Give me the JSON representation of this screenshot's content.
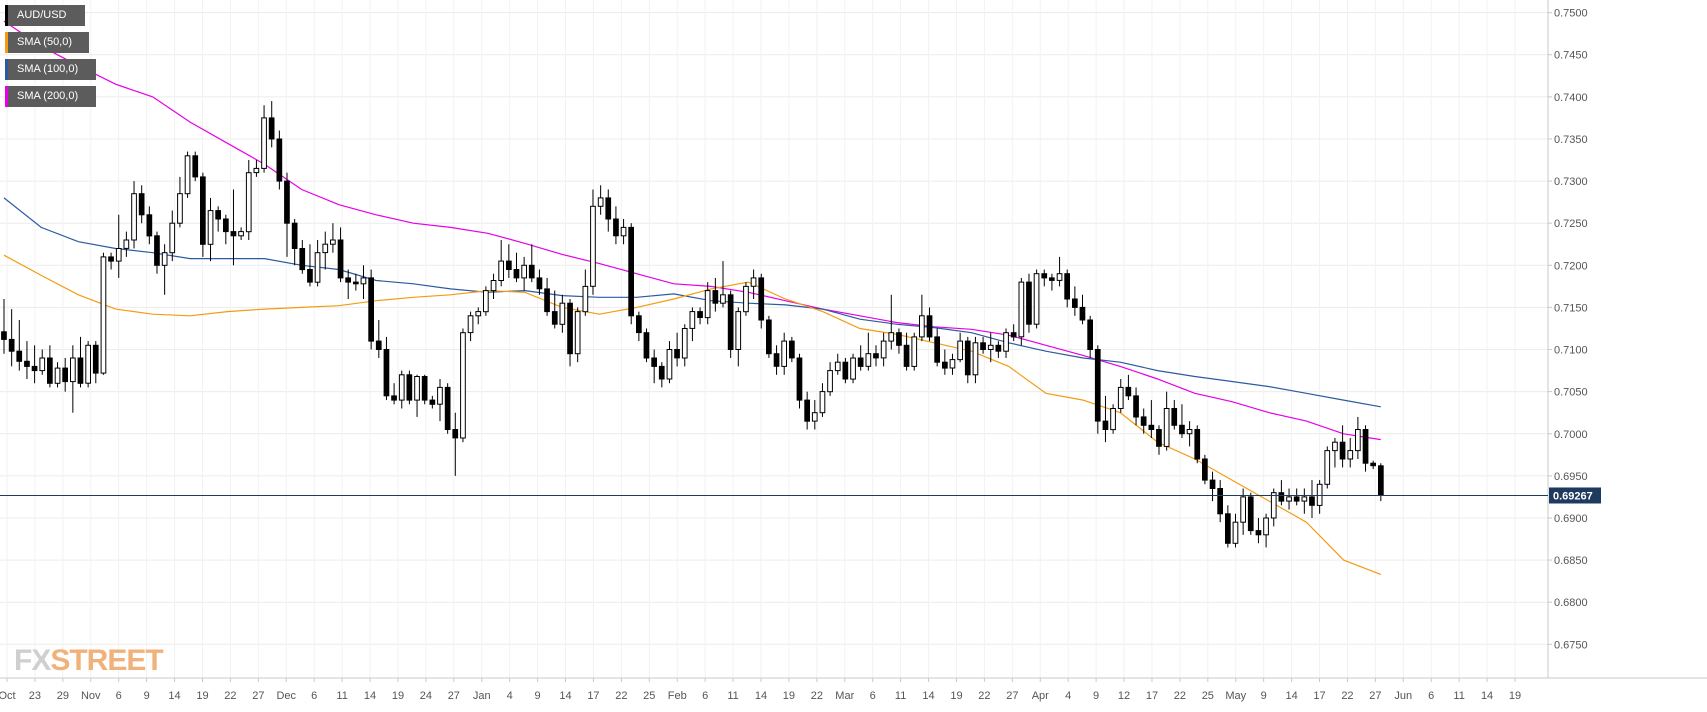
{
  "legend": [
    {
      "label": "AUD/USD",
      "color": "#000000"
    },
    {
      "label": "SMA (50,0)",
      "color": "#f39c12"
    },
    {
      "label": "SMA (100,0)",
      "color": "#2c5aa0"
    },
    {
      "label": "SMA (200,0)",
      "color": "#e600e6"
    }
  ],
  "logo": {
    "fx": "FX",
    "street": "STREET"
  },
  "chart_data": {
    "type": "candlestick",
    "symbol": "AUD/USD",
    "last_price": 0.69267,
    "last_price_label": "0.69267",
    "ylim": [
      0.671,
      0.7515
    ],
    "y_ticks": [
      "0.7500",
      "0.7450",
      "0.7400",
      "0.7350",
      "0.7300",
      "0.7250",
      "0.7200",
      "0.7150",
      "0.7100",
      "0.7050",
      "0.7000",
      "0.6950",
      "0.6900",
      "0.6850",
      "0.6800",
      "0.6750"
    ],
    "x_ticks": [
      "Oct",
      "23",
      "29",
      "Nov",
      "6",
      "9",
      "14",
      "19",
      "22",
      "27",
      "Dec",
      "6",
      "11",
      "14",
      "19",
      "24",
      "27",
      "Jan",
      "4",
      "9",
      "14",
      "17",
      "22",
      "25",
      "Feb",
      "6",
      "11",
      "14",
      "19",
      "22",
      "Mar",
      "6",
      "11",
      "14",
      "19",
      "22",
      "27",
      "Apr",
      "4",
      "9",
      "12",
      "17",
      "22",
      "25",
      "May",
      "9",
      "14",
      "17",
      "22",
      "27",
      "Jun",
      "6",
      "11",
      "14",
      "19"
    ],
    "grid": true,
    "colors": {
      "up": "#ffffff",
      "down": "#000000",
      "sma50": "#f39c12",
      "sma100": "#2c5aa0",
      "sma200": "#e600e6",
      "price_line": "#1f3a5f"
    },
    "candles": [
      [
        0.7121,
        0.716,
        0.7095,
        0.7112
      ],
      [
        0.7112,
        0.7148,
        0.708,
        0.7098
      ],
      [
        0.7098,
        0.7135,
        0.7075,
        0.7086
      ],
      [
        0.7086,
        0.711,
        0.7065,
        0.708
      ],
      [
        0.708,
        0.7105,
        0.706,
        0.7075
      ],
      [
        0.7075,
        0.71,
        0.707,
        0.709
      ],
      [
        0.709,
        0.7105,
        0.7055,
        0.706
      ],
      [
        0.706,
        0.7085,
        0.7055,
        0.7078
      ],
      [
        0.7078,
        0.709,
        0.705,
        0.7062
      ],
      [
        0.7062,
        0.7105,
        0.7025,
        0.709
      ],
      [
        0.709,
        0.7115,
        0.7055,
        0.706
      ],
      [
        0.706,
        0.711,
        0.7055,
        0.7105
      ],
      [
        0.7105,
        0.711,
        0.706,
        0.7072
      ],
      [
        0.7072,
        0.7215,
        0.707,
        0.721
      ],
      [
        0.721,
        0.7215,
        0.7195,
        0.7205
      ],
      [
        0.7205,
        0.726,
        0.7185,
        0.722
      ],
      [
        0.722,
        0.724,
        0.721,
        0.723
      ],
      [
        0.723,
        0.73,
        0.722,
        0.7285
      ],
      [
        0.7285,
        0.7295,
        0.725,
        0.726
      ],
      [
        0.726,
        0.727,
        0.7225,
        0.7235
      ],
      [
        0.7235,
        0.724,
        0.719,
        0.72
      ],
      [
        0.72,
        0.7225,
        0.7165,
        0.7215
      ],
      [
        0.7215,
        0.7265,
        0.7205,
        0.725
      ],
      [
        0.725,
        0.7305,
        0.7245,
        0.7285
      ],
      [
        0.7285,
        0.7335,
        0.728,
        0.733
      ],
      [
        0.733,
        0.7335,
        0.73,
        0.7305
      ],
      [
        0.7305,
        0.731,
        0.721,
        0.7225
      ],
      [
        0.7225,
        0.728,
        0.7205,
        0.7265
      ],
      [
        0.7265,
        0.727,
        0.724,
        0.7255
      ],
      [
        0.7255,
        0.726,
        0.7225,
        0.724
      ],
      [
        0.724,
        0.729,
        0.72,
        0.7235
      ],
      [
        0.7235,
        0.7245,
        0.723,
        0.724
      ],
      [
        0.724,
        0.7325,
        0.723,
        0.731
      ],
      [
        0.731,
        0.7325,
        0.7305,
        0.7315
      ],
      [
        0.7315,
        0.739,
        0.731,
        0.7375
      ],
      [
        0.7375,
        0.7395,
        0.734,
        0.735
      ],
      [
        0.735,
        0.736,
        0.729,
        0.73
      ],
      [
        0.73,
        0.731,
        0.721,
        0.725
      ],
      [
        0.725,
        0.7255,
        0.72,
        0.722
      ],
      [
        0.722,
        0.723,
        0.719,
        0.7195
      ],
      [
        0.7195,
        0.7225,
        0.7175,
        0.718
      ],
      [
        0.718,
        0.723,
        0.7175,
        0.7215
      ],
      [
        0.7215,
        0.724,
        0.7195,
        0.7225
      ],
      [
        0.7225,
        0.725,
        0.7215,
        0.723
      ],
      [
        0.723,
        0.7245,
        0.718,
        0.7185
      ],
      [
        0.7185,
        0.7195,
        0.716,
        0.718
      ],
      [
        0.718,
        0.719,
        0.717,
        0.7178
      ],
      [
        0.7178,
        0.72,
        0.716,
        0.7185
      ],
      [
        0.7185,
        0.7195,
        0.71,
        0.711
      ],
      [
        0.711,
        0.7135,
        0.709,
        0.71
      ],
      [
        0.71,
        0.7115,
        0.704,
        0.7045
      ],
      [
        0.7045,
        0.706,
        0.7035,
        0.704
      ],
      [
        0.704,
        0.7075,
        0.703,
        0.707
      ],
      [
        0.707,
        0.7075,
        0.7035,
        0.704
      ],
      [
        0.704,
        0.707,
        0.702,
        0.7068
      ],
      [
        0.7068,
        0.707,
        0.7035,
        0.704
      ],
      [
        0.704,
        0.7045,
        0.703,
        0.7035
      ],
      [
        0.7035,
        0.7065,
        0.7015,
        0.7055
      ],
      [
        0.7055,
        0.706,
        0.7,
        0.7005
      ],
      [
        0.7005,
        0.7025,
        0.695,
        0.6995
      ],
      [
        0.6995,
        0.7125,
        0.699,
        0.712
      ],
      [
        0.712,
        0.7145,
        0.711,
        0.714
      ],
      [
        0.714,
        0.715,
        0.713,
        0.7145
      ],
      [
        0.7145,
        0.7175,
        0.714,
        0.717
      ],
      [
        0.717,
        0.719,
        0.716,
        0.7182
      ],
      [
        0.7182,
        0.723,
        0.7175,
        0.7205
      ],
      [
        0.7205,
        0.7225,
        0.7185,
        0.7195
      ],
      [
        0.7195,
        0.7215,
        0.718,
        0.7185
      ],
      [
        0.7185,
        0.721,
        0.717,
        0.72
      ],
      [
        0.72,
        0.7225,
        0.718,
        0.7185
      ],
      [
        0.7185,
        0.7195,
        0.7165,
        0.7172
      ],
      [
        0.7172,
        0.7185,
        0.714,
        0.7145
      ],
      [
        0.7145,
        0.717,
        0.7125,
        0.713
      ],
      [
        0.713,
        0.7165,
        0.712,
        0.7155
      ],
      [
        0.7155,
        0.716,
        0.708,
        0.7095
      ],
      [
        0.7095,
        0.715,
        0.7085,
        0.7145
      ],
      [
        0.7145,
        0.7195,
        0.714,
        0.7175
      ],
      [
        0.7175,
        0.729,
        0.7165,
        0.727
      ],
      [
        0.727,
        0.7295,
        0.726,
        0.728
      ],
      [
        0.728,
        0.729,
        0.724,
        0.7255
      ],
      [
        0.7255,
        0.727,
        0.7225,
        0.7235
      ],
      [
        0.7235,
        0.7255,
        0.7225,
        0.7245
      ],
      [
        0.7245,
        0.725,
        0.713,
        0.714
      ],
      [
        0.714,
        0.7145,
        0.711,
        0.712
      ],
      [
        0.712,
        0.7125,
        0.7085,
        0.709
      ],
      [
        0.709,
        0.71,
        0.706,
        0.708
      ],
      [
        0.708,
        0.7085,
        0.7055,
        0.7065
      ],
      [
        0.7065,
        0.711,
        0.706,
        0.71
      ],
      [
        0.71,
        0.712,
        0.708,
        0.709
      ],
      [
        0.709,
        0.713,
        0.708,
        0.7125
      ],
      [
        0.7125,
        0.715,
        0.711,
        0.7145
      ],
      [
        0.7145,
        0.715,
        0.713,
        0.7138
      ],
      [
        0.7138,
        0.718,
        0.713,
        0.717
      ],
      [
        0.717,
        0.7185,
        0.7145,
        0.7155
      ],
      [
        0.7155,
        0.7205,
        0.715,
        0.7165
      ],
      [
        0.7165,
        0.717,
        0.709,
        0.71
      ],
      [
        0.71,
        0.715,
        0.708,
        0.7145
      ],
      [
        0.7145,
        0.718,
        0.714,
        0.7175
      ],
      [
        0.7175,
        0.7195,
        0.716,
        0.7185
      ],
      [
        0.7185,
        0.719,
        0.7125,
        0.7135
      ],
      [
        0.7135,
        0.714,
        0.709,
        0.7095
      ],
      [
        0.7095,
        0.7105,
        0.707,
        0.708
      ],
      [
        0.708,
        0.712,
        0.707,
        0.711
      ],
      [
        0.711,
        0.7115,
        0.7085,
        0.709
      ],
      [
        0.709,
        0.7095,
        0.703,
        0.704
      ],
      [
        0.704,
        0.705,
        0.7005,
        0.7015
      ],
      [
        0.7015,
        0.704,
        0.7005,
        0.7025
      ],
      [
        0.7025,
        0.706,
        0.702,
        0.705
      ],
      [
        0.705,
        0.7085,
        0.7045,
        0.7075
      ],
      [
        0.7075,
        0.7095,
        0.707,
        0.7085
      ],
      [
        0.7085,
        0.709,
        0.706,
        0.7065
      ],
      [
        0.7065,
        0.7095,
        0.706,
        0.709
      ],
      [
        0.709,
        0.7105,
        0.7075,
        0.708
      ],
      [
        0.708,
        0.712,
        0.7075,
        0.7095
      ],
      [
        0.7095,
        0.7105,
        0.708,
        0.709
      ],
      [
        0.709,
        0.712,
        0.708,
        0.711
      ],
      [
        0.711,
        0.7165,
        0.71,
        0.712
      ],
      [
        0.712,
        0.7125,
        0.7095,
        0.7105
      ],
      [
        0.7105,
        0.712,
        0.7075,
        0.708
      ],
      [
        0.708,
        0.712,
        0.7075,
        0.7115
      ],
      [
        0.7115,
        0.7165,
        0.711,
        0.714
      ],
      [
        0.714,
        0.715,
        0.711,
        0.7115
      ],
      [
        0.7115,
        0.7125,
        0.708,
        0.7085
      ],
      [
        0.7085,
        0.71,
        0.707,
        0.7078
      ],
      [
        0.7078,
        0.7095,
        0.707,
        0.7088
      ],
      [
        0.7088,
        0.712,
        0.7085,
        0.711
      ],
      [
        0.711,
        0.7115,
        0.706,
        0.707
      ],
      [
        0.707,
        0.7115,
        0.706,
        0.7108
      ],
      [
        0.7108,
        0.7115,
        0.7095,
        0.71
      ],
      [
        0.71,
        0.712,
        0.7085,
        0.7105
      ],
      [
        0.7105,
        0.711,
        0.709,
        0.7098
      ],
      [
        0.7098,
        0.7125,
        0.709,
        0.712
      ],
      [
        0.712,
        0.713,
        0.711,
        0.7115
      ],
      [
        0.7115,
        0.7185,
        0.7105,
        0.718
      ],
      [
        0.718,
        0.719,
        0.712,
        0.713
      ],
      [
        0.713,
        0.7195,
        0.7125,
        0.719
      ],
      [
        0.719,
        0.7195,
        0.7175,
        0.7185
      ],
      [
        0.7185,
        0.719,
        0.717,
        0.7182
      ],
      [
        0.7182,
        0.721,
        0.7175,
        0.719
      ],
      [
        0.719,
        0.7195,
        0.715,
        0.716
      ],
      [
        0.716,
        0.7175,
        0.714,
        0.715
      ],
      [
        0.715,
        0.7165,
        0.713,
        0.7135
      ],
      [
        0.7135,
        0.714,
        0.709,
        0.71
      ],
      [
        0.71,
        0.7105,
        0.7,
        0.7015
      ],
      [
        0.7015,
        0.7045,
        0.699,
        0.7005
      ],
      [
        0.7005,
        0.7035,
        0.7,
        0.703
      ],
      [
        0.703,
        0.7065,
        0.7025,
        0.7055
      ],
      [
        0.7055,
        0.707,
        0.704,
        0.7045
      ],
      [
        0.7045,
        0.7055,
        0.701,
        0.702
      ],
      [
        0.702,
        0.703,
        0.7,
        0.701
      ],
      [
        0.701,
        0.704,
        0.6995,
        0.7005
      ],
      [
        0.7005,
        0.701,
        0.6975,
        0.6985
      ],
      [
        0.6985,
        0.705,
        0.698,
        0.703
      ],
      [
        0.703,
        0.704,
        0.7005,
        0.701
      ],
      [
        0.701,
        0.7035,
        0.6995,
        0.7
      ],
      [
        0.7,
        0.7015,
        0.6985,
        0.7005
      ],
      [
        0.7005,
        0.701,
        0.6965,
        0.697
      ],
      [
        0.697,
        0.6975,
        0.694,
        0.6945
      ],
      [
        0.6945,
        0.6955,
        0.692,
        0.6935
      ],
      [
        0.6935,
        0.6945,
        0.6895,
        0.6905
      ],
      [
        0.6905,
        0.6915,
        0.6865,
        0.687
      ],
      [
        0.687,
        0.6905,
        0.6865,
        0.6895
      ],
      [
        0.6895,
        0.6935,
        0.688,
        0.6925
      ],
      [
        0.6925,
        0.693,
        0.688,
        0.6885
      ],
      [
        0.6885,
        0.69,
        0.687,
        0.688
      ],
      [
        0.688,
        0.6905,
        0.6865,
        0.69
      ],
      [
        0.69,
        0.6935,
        0.689,
        0.693
      ],
      [
        0.693,
        0.6945,
        0.6915,
        0.692
      ],
      [
        0.692,
        0.6935,
        0.691,
        0.6925
      ],
      [
        0.6925,
        0.6935,
        0.6915,
        0.692
      ],
      [
        0.692,
        0.6935,
        0.6905,
        0.6925
      ],
      [
        0.6925,
        0.6945,
        0.69,
        0.6915
      ],
      [
        0.6915,
        0.6945,
        0.6905,
        0.694
      ],
      [
        0.694,
        0.6985,
        0.6935,
        0.698
      ],
      [
        0.698,
        0.6995,
        0.696,
        0.699
      ],
      [
        0.699,
        0.701,
        0.696,
        0.697
      ],
      [
        0.697,
        0.6995,
        0.696,
        0.698
      ],
      [
        0.698,
        0.702,
        0.697,
        0.7005
      ],
      [
        0.7005,
        0.701,
        0.6955,
        0.6965
      ],
      [
        0.6965,
        0.6968,
        0.6958,
        0.6962
      ],
      [
        0.6962,
        0.6965,
        0.692,
        0.69267
      ]
    ],
    "sma50": [
      0.7212,
      0.7188,
      0.7165,
      0.7148,
      0.7142,
      0.714,
      0.7145,
      0.7148,
      0.715,
      0.7152,
      0.7158,
      0.7162,
      0.7165,
      0.717,
      0.7168,
      0.715,
      0.7142,
      0.715,
      0.716,
      0.7172,
      0.718,
      0.716,
      0.7145,
      0.7125,
      0.7118,
      0.7108,
      0.7098,
      0.708,
      0.7048,
      0.704,
      0.7025,
      0.699,
      0.697,
      0.6945,
      0.692,
      0.6895,
      0.685,
      0.6833
    ],
    "sma100": [
      0.728,
      0.7245,
      0.7228,
      0.722,
      0.7215,
      0.7208,
      0.7208,
      0.7208,
      0.72,
      0.7195,
      0.7182,
      0.7178,
      0.7172,
      0.7168,
      0.717,
      0.7164,
      0.7162,
      0.7162,
      0.7166,
      0.7158,
      0.7155,
      0.7153,
      0.7148,
      0.7136,
      0.713,
      0.7126,
      0.712,
      0.7108,
      0.7098,
      0.709,
      0.7085,
      0.7075,
      0.7068,
      0.7062,
      0.7056,
      0.7048,
      0.704,
      0.7032
    ],
    "sma200": [
      0.749,
      0.746,
      0.7437,
      0.7415,
      0.74,
      0.737,
      0.7345,
      0.732,
      0.729,
      0.7272,
      0.726,
      0.725,
      0.7245,
      0.7238,
      0.7226,
      0.7213,
      0.7202,
      0.719,
      0.7178,
      0.7175,
      0.7168,
      0.7158,
      0.7148,
      0.714,
      0.7132,
      0.7127,
      0.7124,
      0.7117,
      0.7105,
      0.7093,
      0.708,
      0.7065,
      0.7048,
      0.7038,
      0.7025,
      0.7015,
      0.7,
      0.6993
    ]
  }
}
